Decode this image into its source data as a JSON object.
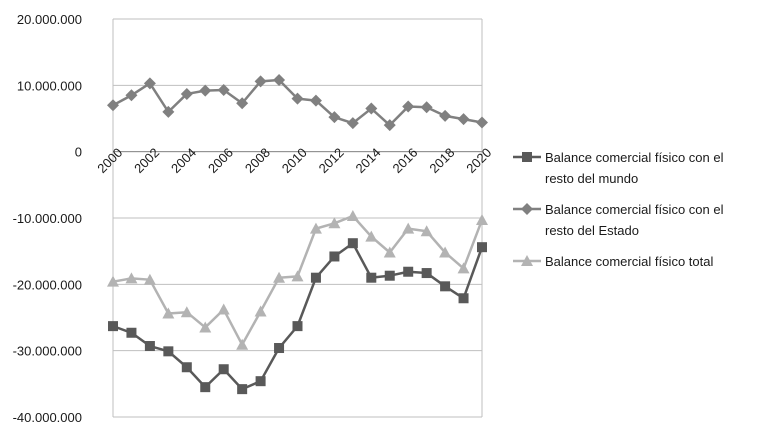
{
  "chart_data": {
    "type": "line",
    "x": [
      2000,
      2001,
      2002,
      2003,
      2004,
      2005,
      2006,
      2007,
      2008,
      2009,
      2010,
      2011,
      2012,
      2013,
      2014,
      2015,
      2016,
      2017,
      2018,
      2019,
      2020
    ],
    "x_tick_labels": [
      "2000",
      "2002",
      "2004",
      "2006",
      "2008",
      "2010",
      "2012",
      "2014",
      "2016",
      "2018",
      "2020"
    ],
    "y_tick_labels": [
      "20.000.000",
      "10.000.000",
      "0",
      "-10.000.000",
      "-20.000.000",
      "-30.000.000",
      "-40.000.000"
    ],
    "ylim": [
      -40000000,
      20000000
    ],
    "grid": true,
    "legend_position": "right",
    "series": [
      {
        "name": "Balance comercial físico con el resto del mundo",
        "legend_lines": [
          "Balance comercial físico con el",
          "resto del mundo"
        ],
        "marker": "square",
        "color": "#595959",
        "values": [
          -26300000,
          -27300000,
          -29300000,
          -30100000,
          -32500000,
          -35500000,
          -32800000,
          -35800000,
          -34600000,
          -29600000,
          -26300000,
          -19000000,
          -15800000,
          -13800000,
          -19000000,
          -18700000,
          -18100000,
          -18300000,
          -20300000,
          -22100000,
          -14400000
        ]
      },
      {
        "name": "Balance comercial físico con el resto del Estado",
        "legend_lines": [
          "Balance comercial físico con el",
          "resto del Estado"
        ],
        "marker": "diamond",
        "color": "#808080",
        "values": [
          7000000,
          8500000,
          10300000,
          6000000,
          8700000,
          9200000,
          9300000,
          7300000,
          10600000,
          10800000,
          8000000,
          7700000,
          5200000,
          4300000,
          6500000,
          4000000,
          6800000,
          6700000,
          5400000,
          4900000,
          4400000
        ]
      },
      {
        "name": "Balance comercial físico total",
        "legend_lines": [
          "Balance comercial físico total"
        ],
        "marker": "triangle",
        "color": "#b3b3b3",
        "values": [
          -19600000,
          -19100000,
          -19300000,
          -24400000,
          -24200000,
          -26500000,
          -23800000,
          -29100000,
          -24100000,
          -19000000,
          -18800000,
          -11600000,
          -10800000,
          -9700000,
          -12800000,
          -15200000,
          -11600000,
          -12000000,
          -15200000,
          -17600000,
          -10300000
        ]
      }
    ]
  }
}
